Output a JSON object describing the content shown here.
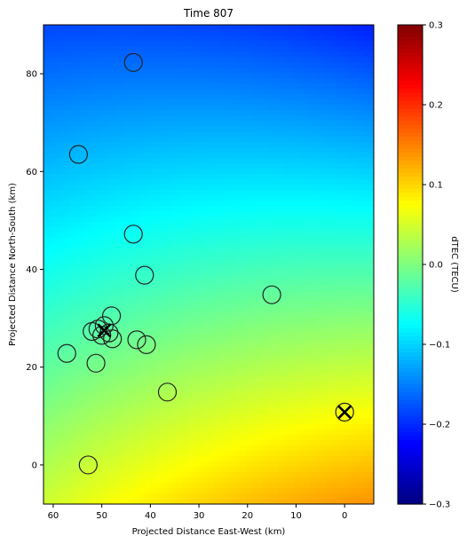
{
  "chart_data": {
    "type": "heatmap",
    "title": "Time 807",
    "xlabel": "Projected Distance East-West (km)",
    "ylabel": "Projected Distance North-South (km)",
    "xlim": [
      62,
      -6
    ],
    "ylim": [
      -8,
      90
    ],
    "xticks": [
      60,
      50,
      40,
      30,
      20,
      10,
      0
    ],
    "yticks": [
      0,
      20,
      40,
      60,
      80
    ],
    "colorbar": {
      "label": "dTEC (TECU)",
      "range": [
        -0.3,
        0.3
      ],
      "ticks": [
        -0.3,
        -0.2,
        -0.1,
        0.0,
        0.1,
        0.2,
        0.3
      ],
      "tick_labels": [
        "−0.3",
        "−0.2",
        "−0.1",
        "0.0",
        "0.1",
        "0.2",
        "0.3"
      ],
      "colormap": "jet"
    },
    "circles": [
      {
        "x": 43.5,
        "y": 82.3
      },
      {
        "x": 54.8,
        "y": 63.5
      },
      {
        "x": 43.5,
        "y": 47.2
      },
      {
        "x": 41.2,
        "y": 38.8
      },
      {
        "x": 15.0,
        "y": 34.8
      },
      {
        "x": 48.0,
        "y": 30.5
      },
      {
        "x": 49.5,
        "y": 28.5
      },
      {
        "x": 50.8,
        "y": 27.8
      },
      {
        "x": 52.0,
        "y": 27.3
      },
      {
        "x": 48.5,
        "y": 27.0
      },
      {
        "x": 50.0,
        "y": 26.5
      },
      {
        "x": 47.8,
        "y": 25.8
      },
      {
        "x": 42.8,
        "y": 25.6
      },
      {
        "x": 40.8,
        "y": 24.6
      },
      {
        "x": 57.2,
        "y": 22.8
      },
      {
        "x": 51.2,
        "y": 20.8
      },
      {
        "x": 36.5,
        "y": 14.9
      },
      {
        "x": 52.8,
        "y": 0.0
      },
      {
        "x": 0.0,
        "y": 10.8
      }
    ],
    "crosses": [
      {
        "x": 49.5,
        "y": 27.5
      },
      {
        "x": 0.0,
        "y": 10.8
      }
    ]
  },
  "colors": {
    "marker_edge": "#222222"
  }
}
